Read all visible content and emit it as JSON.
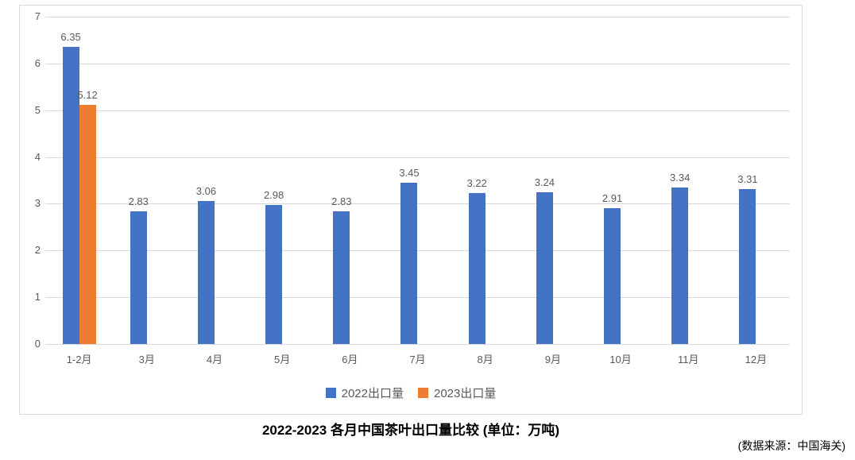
{
  "chart_data": {
    "type": "bar",
    "title": "2022-2023 各月中国茶叶出口量比较 (单位：万吨)",
    "source": "(数据来源：中国海关)",
    "categories": [
      "1-2月",
      "3月",
      "4月",
      "5月",
      "6月",
      "7月",
      "8月",
      "9月",
      "10月",
      "11月",
      "12月"
    ],
    "series": [
      {
        "name": "2022出口量",
        "color": "#4472C4",
        "values": [
          6.35,
          2.83,
          3.06,
          2.98,
          2.83,
          3.45,
          3.22,
          3.24,
          2.91,
          3.34,
          3.31
        ]
      },
      {
        "name": "2023出口量",
        "color": "#ED7D31",
        "values": [
          5.12,
          null,
          null,
          null,
          null,
          null,
          null,
          null,
          null,
          null,
          null
        ]
      }
    ],
    "ylim": [
      0,
      7
    ],
    "yticks": [
      0,
      1,
      2,
      3,
      4,
      5,
      6,
      7
    ],
    "grid": true,
    "legend_position": "bottom",
    "colors": {
      "gridline": "#D9D9D9",
      "axis_text": "#595959",
      "title_text": "#000000"
    }
  }
}
